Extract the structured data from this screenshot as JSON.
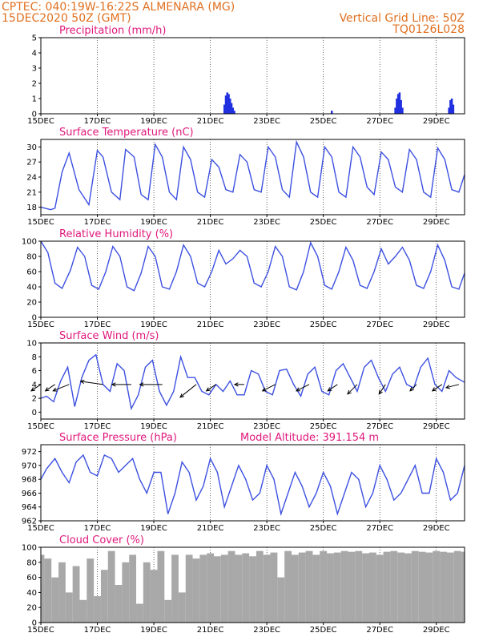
{
  "header": {
    "left_line1": "CPTEC:   040:19W-16:22S   ALMENARA (MG)",
    "left_line2": "15DEC2020 50Z (GMT)",
    "right_line1": "Vertical Grid Line: 50Z",
    "right_line2": "TQ0126L028"
  },
  "colors": {
    "header": "#e07020",
    "title": "#e0187c",
    "series": "#3c50e0",
    "bars": "#2030e0",
    "cloud": "#a8a8a8",
    "arrows": "#000000"
  },
  "chart_data": [
    {
      "type": "bar",
      "title": "Precipitation (mm/h)",
      "x_tick_labels": [
        "15DEC",
        "17DEC",
        "19DEC",
        "21DEC",
        "23DEC",
        "25DEC",
        "27DEC",
        "29DEC"
      ],
      "x_tick_days": [
        0,
        2,
        4,
        6,
        8,
        10,
        12,
        14
      ],
      "x_range_days": [
        0,
        15
      ],
      "ylim": [
        0,
        5
      ],
      "y_ticks": [
        0,
        1,
        2,
        3,
        4,
        5
      ],
      "grid": "vertical dotted",
      "x_days": [
        6.5,
        6.55,
        6.6,
        6.65,
        6.7,
        6.75,
        6.8,
        6.85,
        10.3,
        12.55,
        12.6,
        12.65,
        12.7,
        12.75,
        12.8,
        14.45,
        14.5,
        14.55,
        14.6
      ],
      "values": [
        0.6,
        1.2,
        1.4,
        1.3,
        1.0,
        0.7,
        0.4,
        0.2,
        0.2,
        0.4,
        1.0,
        1.3,
        1.4,
        0.9,
        0.4,
        0.4,
        0.9,
        1.0,
        0.6
      ]
    },
    {
      "type": "line",
      "title": "Surface Temperature (nC)",
      "x_tick_labels": [
        "15DEC",
        "17DEC",
        "19DEC",
        "21DEC",
        "23DEC",
        "25DEC",
        "27DEC",
        "29DEC"
      ],
      "x_tick_days": [
        0,
        2,
        4,
        6,
        8,
        10,
        12,
        14
      ],
      "x_range_days": [
        0,
        15
      ],
      "ylim": [
        16.5,
        31.5
      ],
      "y_ticks": [
        18,
        21,
        24,
        27,
        30
      ],
      "grid": "vertical dotted",
      "x_days": [
        0,
        0.35,
        0.5,
        0.75,
        1,
        1.35,
        1.7,
        2,
        2.2,
        2.5,
        2.8,
        3,
        3.3,
        3.55,
        3.8,
        4.05,
        4.3,
        4.55,
        4.8,
        5.05,
        5.3,
        5.55,
        5.8,
        6.05,
        6.3,
        6.55,
        6.8,
        7.05,
        7.3,
        7.55,
        7.8,
        8.05,
        8.3,
        8.55,
        8.8,
        9.05,
        9.3,
        9.55,
        9.8,
        10.05,
        10.3,
        10.55,
        10.8,
        11.05,
        11.3,
        11.55,
        11.8,
        12.05,
        12.3,
        12.55,
        12.8,
        13.05,
        13.3,
        13.55,
        13.8,
        14.05,
        14.3,
        14.55,
        14.8,
        15
      ],
      "values": [
        18,
        17.5,
        17.8,
        25,
        28.8,
        21.5,
        18.5,
        29.3,
        28,
        21,
        19.5,
        29.5,
        28,
        20.5,
        19.5,
        30.5,
        28,
        21,
        19.5,
        30,
        27.5,
        21,
        20,
        27.5,
        26,
        21.5,
        21,
        28.5,
        27,
        21.5,
        21,
        30,
        28,
        21.5,
        20,
        31,
        28,
        21,
        20,
        30,
        28,
        21,
        20,
        30,
        28,
        22,
        20.5,
        29,
        27.5,
        22,
        21,
        29.5,
        27.5,
        21,
        20,
        29.8,
        27.5,
        21.5,
        21,
        24.5
      ]
    },
    {
      "type": "line",
      "title": "Relative Humidity (%)",
      "x_tick_labels": [
        "15DEC",
        "17DEC",
        "19DEC",
        "21DEC",
        "23DEC",
        "25DEC",
        "27DEC",
        "29DEC"
      ],
      "x_tick_days": [
        0,
        2,
        4,
        6,
        8,
        10,
        12,
        14
      ],
      "x_range_days": [
        0,
        15
      ],
      "ylim": [
        0,
        100
      ],
      "y_ticks": [
        0,
        20,
        40,
        60,
        80,
        100
      ],
      "grid": "vertical dotted",
      "x_days": [
        0,
        0.25,
        0.5,
        0.75,
        1.05,
        1.3,
        1.55,
        1.8,
        2.05,
        2.3,
        2.55,
        2.8,
        3.05,
        3.3,
        3.55,
        3.8,
        4.05,
        4.3,
        4.55,
        4.8,
        5.05,
        5.3,
        5.55,
        5.8,
        6.05,
        6.3,
        6.55,
        6.8,
        7.05,
        7.3,
        7.55,
        7.8,
        8.05,
        8.3,
        8.55,
        8.8,
        9.05,
        9.3,
        9.55,
        9.8,
        10.05,
        10.3,
        10.55,
        10.8,
        11.05,
        11.3,
        11.55,
        11.8,
        12.05,
        12.3,
        12.55,
        12.8,
        13.05,
        13.3,
        13.55,
        13.8,
        14.05,
        14.3,
        14.55,
        14.8,
        15
      ],
      "values": [
        100,
        85,
        45,
        38,
        62,
        92,
        80,
        42,
        37,
        60,
        93,
        80,
        40,
        35,
        58,
        93,
        80,
        40,
        37,
        60,
        95,
        80,
        45,
        40,
        60,
        88,
        70,
        77,
        88,
        80,
        45,
        40,
        60,
        93,
        80,
        40,
        36,
        60,
        98,
        80,
        42,
        37,
        60,
        92,
        75,
        42,
        38,
        60,
        90,
        70,
        80,
        92,
        75,
        42,
        38,
        60,
        95,
        75,
        40,
        37,
        58
      ]
    },
    {
      "type": "line",
      "title": "Surface Wind (m/s)",
      "x_tick_labels": [
        "15DEC",
        "17DEC",
        "19DEC",
        "21DEC",
        "23DEC",
        "25DEC",
        "27DEC",
        "29DEC"
      ],
      "x_tick_days": [
        0,
        2,
        4,
        6,
        8,
        10,
        12,
        14
      ],
      "x_range_days": [
        0,
        15
      ],
      "ylim": [
        -1,
        10
      ],
      "y_ticks": [
        0,
        2,
        4,
        6,
        8,
        10
      ],
      "grid": "vertical dotted",
      "x_days": [
        0,
        0.2,
        0.45,
        0.7,
        0.95,
        1.2,
        1.45,
        1.7,
        1.95,
        2.2,
        2.45,
        2.7,
        2.95,
        3.2,
        3.45,
        3.7,
        3.95,
        4.2,
        4.45,
        4.7,
        4.95,
        5.2,
        5.45,
        5.7,
        5.95,
        6.2,
        6.45,
        6.7,
        6.95,
        7.2,
        7.45,
        7.7,
        7.95,
        8.2,
        8.45,
        8.7,
        8.95,
        9.2,
        9.45,
        9.7,
        9.95,
        10.2,
        10.45,
        10.7,
        10.95,
        11.2,
        11.45,
        11.7,
        11.95,
        12.2,
        12.45,
        12.7,
        12.95,
        13.2,
        13.45,
        13.7,
        13.95,
        14.2,
        14.45,
        14.7,
        15
      ],
      "values": [
        2,
        2.3,
        1.5,
        4.5,
        6.5,
        0.8,
        5,
        7.5,
        8.3,
        4,
        3,
        7,
        6,
        0.5,
        2.5,
        6.5,
        7.5,
        3,
        1,
        3,
        8,
        5,
        5,
        3,
        2.5,
        4,
        3,
        4.5,
        2.5,
        2.5,
        6,
        5.5,
        3,
        2.5,
        6,
        6.2,
        4,
        2.3,
        5.5,
        6.5,
        3,
        2.5,
        6,
        7,
        5,
        3,
        6.5,
        7.5,
        5,
        3,
        5.5,
        6.5,
        4,
        3.5,
        6.5,
        7.8,
        4,
        3,
        6,
        5,
        4.3
      ],
      "arrow_x_days": [
        0,
        0.5,
        1,
        2.2,
        3.2,
        4.3,
        5.5,
        6.2,
        7.2,
        8.3,
        9.5,
        10.5,
        11.2,
        12.2,
        13.3,
        14.2,
        14.8
      ],
      "arrow_u": [
        -3,
        -3,
        -5,
        -7,
        -6,
        -7,
        -5,
        -3,
        -3,
        -4,
        -4,
        -3,
        -3,
        -2,
        -2,
        -3,
        -4
      ],
      "arrow_v": [
        -2,
        -2,
        -2,
        1,
        0,
        0,
        -4,
        -2,
        0,
        -2,
        -2,
        -2,
        -3,
        -3,
        -2,
        -2,
        -1
      ]
    },
    {
      "type": "line",
      "title": "Surface Pressure (hPa)",
      "annotation": "Model Altitude: 391.154 m",
      "x_tick_labels": [
        "15DEC",
        "17DEC",
        "19DEC",
        "21DEC",
        "23DEC",
        "25DEC",
        "27DEC",
        "29DEC"
      ],
      "x_tick_days": [
        0,
        2,
        4,
        6,
        8,
        10,
        12,
        14
      ],
      "x_range_days": [
        0,
        15
      ],
      "ylim": [
        962,
        973
      ],
      "y_ticks": [
        962,
        964,
        966,
        968,
        970,
        972
      ],
      "grid": "vertical dotted",
      "x_days": [
        0,
        0.2,
        0.5,
        0.75,
        1,
        1.25,
        1.5,
        1.75,
        2,
        2.25,
        2.5,
        2.75,
        3,
        3.25,
        3.5,
        3.75,
        4,
        4.25,
        4.5,
        4.75,
        5,
        5.25,
        5.5,
        5.75,
        6,
        6.25,
        6.5,
        6.75,
        7,
        7.25,
        7.5,
        7.75,
        8,
        8.25,
        8.5,
        8.75,
        9,
        9.25,
        9.5,
        9.75,
        10,
        10.25,
        10.5,
        10.75,
        11,
        11.25,
        11.5,
        11.75,
        12,
        12.25,
        12.5,
        12.75,
        13,
        13.25,
        13.5,
        13.75,
        14,
        14.25,
        14.5,
        14.75,
        15
      ],
      "values": [
        968,
        969.5,
        971,
        969,
        967.5,
        970.5,
        971.5,
        969,
        968.5,
        971.5,
        971,
        969,
        970,
        971,
        968,
        966,
        969,
        969,
        963,
        966,
        970.5,
        969,
        965,
        967,
        971,
        969,
        964,
        967,
        970,
        968,
        965,
        966,
        970,
        968,
        963,
        966,
        969,
        967,
        964,
        966,
        969,
        967,
        963,
        966,
        969,
        968,
        964,
        966,
        970,
        968,
        965,
        966,
        968,
        970,
        966,
        966,
        971,
        969,
        965,
        966,
        970
      ]
    },
    {
      "type": "area",
      "title": "Cloud Cover (%)",
      "x_tick_labels": [
        "15DEC",
        "17DEC",
        "19DEC",
        "21DEC",
        "23DEC",
        "25DEC",
        "27DEC",
        "29DEC"
      ],
      "x_tick_days": [
        0,
        2,
        4,
        6,
        8,
        10,
        12,
        14
      ],
      "x_range_days": [
        0,
        15
      ],
      "ylim": [
        0,
        100
      ],
      "y_ticks": [
        0,
        20,
        40,
        60,
        80,
        100
      ],
      "grid": "vertical dotted",
      "x_days": [
        0,
        0.25,
        0.5,
        0.75,
        1,
        1.25,
        1.5,
        1.75,
        2,
        2.25,
        2.5,
        2.75,
        3,
        3.25,
        3.5,
        3.75,
        4,
        4.25,
        4.5,
        4.75,
        5,
        5.25,
        5.5,
        5.75,
        6,
        6.25,
        6.5,
        6.75,
        7,
        7.25,
        7.5,
        7.75,
        8,
        8.25,
        8.5,
        8.75,
        9,
        9.25,
        9.5,
        9.75,
        10,
        10.25,
        10.5,
        10.75,
        11,
        11.25,
        11.5,
        11.75,
        12,
        12.25,
        12.5,
        12.75,
        13,
        13.25,
        13.5,
        13.75,
        14,
        14.25,
        14.5,
        14.75,
        15
      ],
      "values": [
        90,
        85,
        60,
        80,
        40,
        75,
        30,
        85,
        35,
        70,
        95,
        50,
        80,
        90,
        25,
        80,
        70,
        95,
        30,
        90,
        40,
        90,
        85,
        90,
        92,
        88,
        90,
        95,
        90,
        92,
        88,
        95,
        90,
        93,
        60,
        95,
        90,
        93,
        95,
        90,
        95,
        92,
        93,
        95,
        94,
        95,
        92,
        93,
        90,
        94,
        95,
        93,
        92,
        95,
        94,
        93,
        95,
        94,
        93,
        95,
        94
      ]
    }
  ]
}
